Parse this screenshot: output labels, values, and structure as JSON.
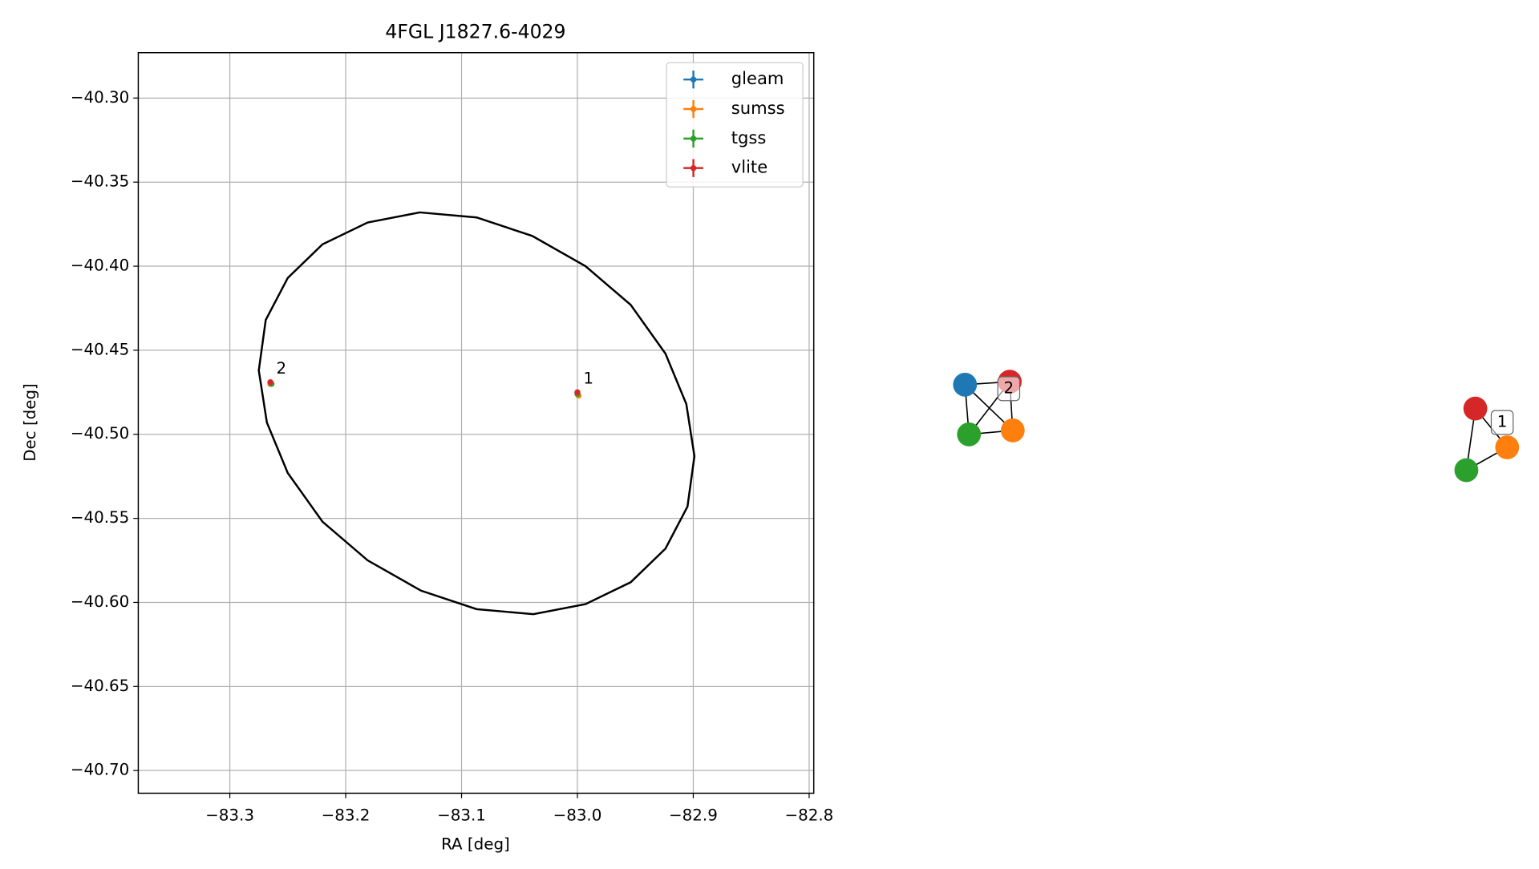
{
  "chart_data": {
    "type": "scatter",
    "title": "4FGL J1827.6-4029",
    "x_label": "RA [deg]",
    "y_label": "Dec [deg]",
    "xlim": [
      -83.379,
      -82.796
    ],
    "ylim": [
      -40.7135,
      -40.273
    ],
    "xticks": [
      {
        "value": -83.3,
        "label": "−83.3"
      },
      {
        "value": -83.2,
        "label": "−83.2"
      },
      {
        "value": -83.1,
        "label": "−83.1"
      },
      {
        "value": -83.0,
        "label": "−83.0"
      },
      {
        "value": -82.9,
        "label": "−82.9"
      },
      {
        "value": -82.8,
        "label": "−82.8"
      }
    ],
    "yticks": [
      {
        "value": -40.3,
        "label": "−40.30"
      },
      {
        "value": -40.35,
        "label": "−40.35"
      },
      {
        "value": -40.4,
        "label": "−40.40"
      },
      {
        "value": -40.45,
        "label": "−40.45"
      },
      {
        "value": -40.5,
        "label": "−40.50"
      },
      {
        "value": -40.55,
        "label": "−40.55"
      },
      {
        "value": -40.6,
        "label": "−40.60"
      },
      {
        "value": -40.65,
        "label": "−40.65"
      },
      {
        "value": -40.7,
        "label": "−40.70"
      }
    ],
    "grid": true,
    "legend": "upper right",
    "series": [
      {
        "name": "gleam",
        "color": "#1f77b4",
        "x": [
          -83.265
        ],
        "y": [
          -40.47
        ]
      },
      {
        "name": "sumss",
        "color": "#ff7f0e",
        "x": [
          -83.265,
          -82.999
        ],
        "y": [
          -40.47,
          -40.477
        ]
      },
      {
        "name": "tgss",
        "color": "#2ca02c",
        "x": [
          -83.264,
          -83.0
        ],
        "y": [
          -40.47,
          -40.476
        ]
      },
      {
        "name": "vlite",
        "color": "#d62728",
        "x": [
          -83.265,
          -83.0
        ],
        "y": [
          -40.469,
          -40.475
        ]
      }
    ],
    "point_labels": [
      "2",
      "1"
    ],
    "ellipse": {
      "x": [
        -82.924,
        -82.954,
        -82.993,
        -83.038,
        -83.087,
        -83.135,
        -83.181,
        -83.22,
        -83.25,
        -83.268,
        -83.275,
        -83.269,
        -83.25,
        -83.22,
        -83.181,
        -83.136,
        -83.087,
        -83.039,
        -82.993,
        -82.954,
        -82.924,
        -82.906,
        -82.899,
        -82.905
      ],
      "y": [
        -40.568,
        -40.588,
        -40.601,
        -40.607,
        -40.604,
        -40.593,
        -40.575,
        -40.552,
        -40.523,
        -40.493,
        -40.462,
        -40.432,
        -40.407,
        -40.387,
        -40.374,
        -40.368,
        -40.371,
        -40.382,
        -40.4,
        -40.423,
        -40.452,
        -40.482,
        -40.513,
        -40.543
      ]
    }
  },
  "network": {
    "clusters": [
      {
        "label": "2"
      },
      {
        "label": "1"
      }
    ]
  }
}
